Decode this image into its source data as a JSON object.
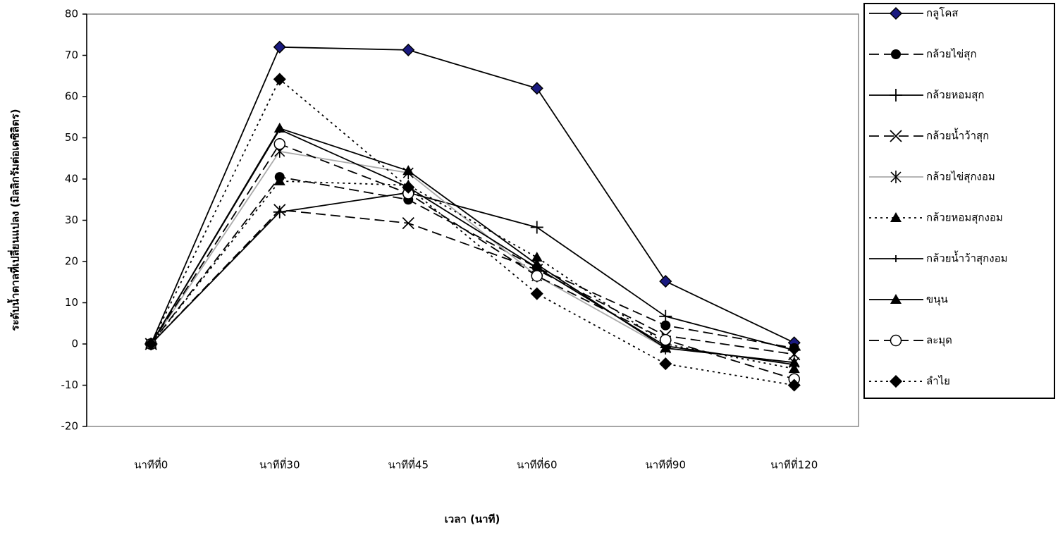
{
  "chart_data": {
    "type": "line",
    "y_label": "ระดับน้ำตาลที่เปลี่ยนแปลง (มิลลิกรัมต่อเดซิลิตร)",
    "x_label": "เวลา (นาที)",
    "categories": [
      "นาทีที่0",
      "นาทีที่30",
      "นาทีที่45",
      "นาทีที่60",
      "นาทีที่90",
      "นาทีที่120"
    ],
    "ylim": [
      -20,
      80
    ],
    "yticks": [
      -20,
      -10,
      0,
      10,
      20,
      30,
      40,
      50,
      60,
      70,
      80
    ],
    "series": [
      {
        "name": "กลูโคส",
        "color": "#1a1a80",
        "values": [
          0,
          72,
          71.3,
          62,
          15.2,
          0.3
        ]
      },
      {
        "name": "กล้วยไข่สุก",
        "color": "#000000",
        "values": [
          0,
          40.5,
          35,
          18.5,
          4.5,
          -1
        ]
      },
      {
        "name": "กล้วยหอมสุก",
        "color": "#000000",
        "values": [
          0,
          32,
          36.7,
          28.3,
          6.7,
          -1.5
        ]
      },
      {
        "name": "กล้วยน้ำว้าสุก",
        "color": "#000000",
        "values": [
          0,
          32.5,
          29.3,
          18,
          2,
          -2.5
        ]
      },
      {
        "name": "กล้วยไข่สุกงอม",
        "color": "#000000",
        "values": [
          0,
          46.7,
          41.5,
          16.5,
          -1,
          -4.5
        ]
      },
      {
        "name": "กล้วยหอมสุกงอม",
        "color": "#000000",
        "values": [
          0,
          39.5,
          38.5,
          21,
          0,
          -6
        ]
      },
      {
        "name": "กล้วยน้ำว้าสุกงอม",
        "color": "#000000",
        "values": [
          0,
          52,
          38,
          18.5,
          -0.5,
          -5
        ]
      },
      {
        "name": "ขนุน",
        "color": "#000000",
        "values": [
          0,
          52.3,
          42,
          19.3,
          -1,
          -4.5
        ]
      },
      {
        "name": "ละมุด",
        "color": "#000000",
        "values": [
          0,
          48.5,
          36.5,
          16.5,
          1,
          -8.5
        ]
      },
      {
        "name": "ลำไย",
        "color": "#000000",
        "values": [
          0,
          64.2,
          38,
          12.2,
          -4.8,
          -10
        ]
      }
    ]
  }
}
